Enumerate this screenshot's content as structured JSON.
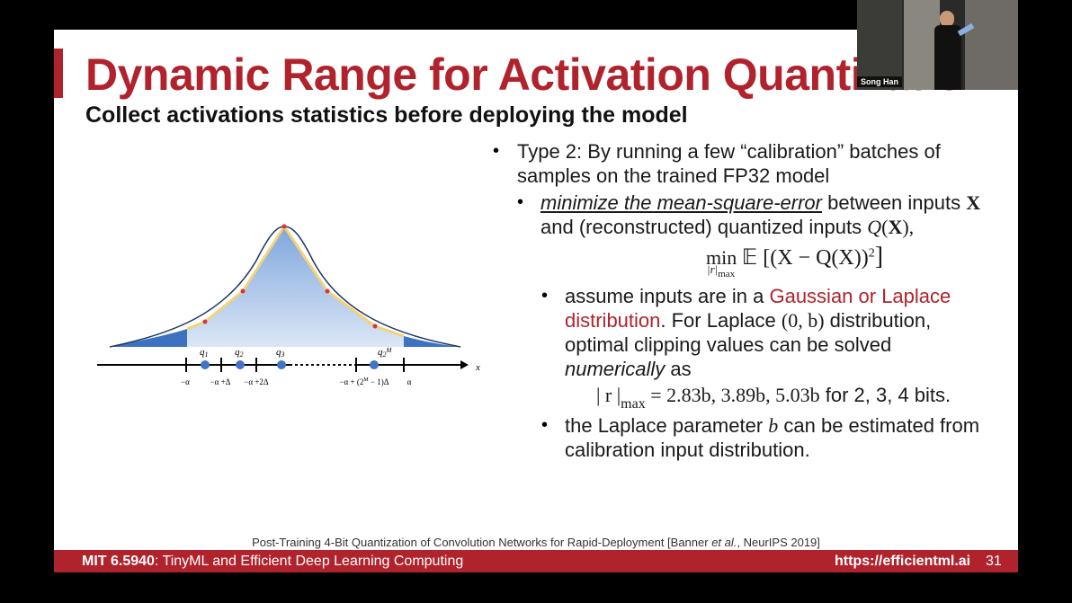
{
  "slide": {
    "title": "Dynamic Range for Activation Quantization",
    "subtitle": "Collect activations statistics before deploying the model",
    "bullets": [
      {
        "parts": [
          "Type 2: By running a few “calibration” batches of samples on the trained FP32 model"
        ]
      },
      {
        "parts": [
          "minimize the mean-square-error",
          " between inputs ",
          "X",
          " and (reconstructed) quantized inputs ",
          "Q",
          "(",
          "X",
          "),"
        ]
      },
      {
        "parts": [
          "assume inputs are in a ",
          "Gaussian or Laplace distribution",
          ". For Laplace ",
          "(0, b)",
          " distribution, optimal clipping values can be solved ",
          "numerically",
          " as"
        ]
      },
      {
        "parts": [
          "the Laplace parameter ",
          "b",
          " can be estimated from calibration input distribution."
        ]
      }
    ],
    "formula_mse": {
      "op": "min",
      "under": "|r|",
      "under_sub": "max",
      "expr": "𝔼 [(X − Q(X))",
      "power": "2",
      "close": "]"
    },
    "formula_clip": {
      "lhs": "| r |",
      "lhs_sub": "max",
      "rhs": " = 2.83b, 3.89b, 5.03b",
      "tail": " for 2, 3, 4 bits."
    },
    "diagram": {
      "levels": [
        {
          "base": "q",
          "sub": "1"
        },
        {
          "base": "q",
          "sub": "2"
        },
        {
          "base": "q",
          "sub": "3"
        },
        {
          "base": "q",
          "sub": "2",
          "sup": "M"
        }
      ],
      "ticks": [
        "−α",
        "−α +Δ",
        "−α +2Δ",
        "α"
      ],
      "last_tick": {
        "pre": "−α + (2",
        "sup": "M",
        "post": " − 1)Δ"
      },
      "axis": "x"
    },
    "citation": {
      "pre": "Post-Training 4-Bit Quantization of Convolution Networks for Rapid-Deployment [Banner ",
      "etal": "et al.",
      "post": ", NeurIPS 2019]"
    },
    "footer": {
      "course": "MIT 6.5940",
      "course_title": ": TinyML and Efficient Deep Learning Computing",
      "url": "https://efficientml.ai",
      "page": "31"
    },
    "webcam": {
      "name": "Song Han"
    }
  }
}
